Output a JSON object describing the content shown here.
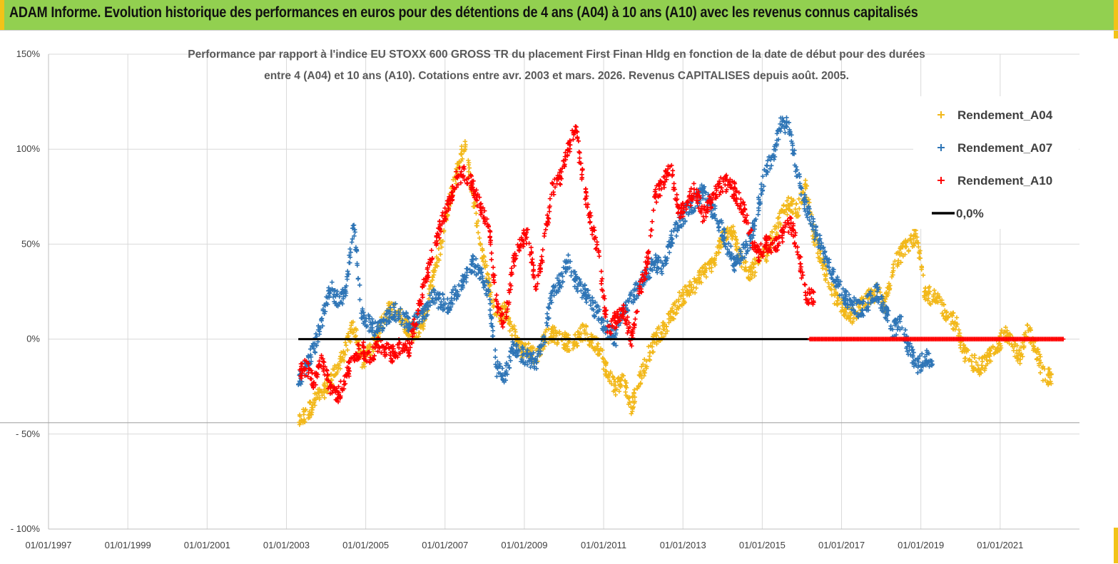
{
  "header": {
    "title": "ADAM Informe. Evolution historique des performances en euros pour des détentions de 4 ans (A04) à 10 ans (A10) avec les revenus connus capitalisés",
    "background": "#92d050"
  },
  "chart_data": {
    "type": "scatter",
    "title_line1": "Performance par rapport à l'indice EU STOXX 600 GROSS TR  du placement First Finan Hldg  en fonction de la date de début pour des durées",
    "title_line2": "entre 4 (A04) et 10 ans (A10). Cotations entre avr. 2003 et mars. 2026. Revenus CAPITALISES depuis août. 2005.",
    "xlabel": "",
    "ylabel": "",
    "y_range": [
      -100,
      150
    ],
    "y_ticks": [
      -100,
      -50,
      0,
      50,
      100,
      150
    ],
    "y_tick_labels": [
      "- 100%",
      "- 50%",
      "0%",
      "50%",
      "100%",
      "150%"
    ],
    "x_range": [
      1997.0,
      2023.0
    ],
    "x_ticks": [
      1997,
      1999,
      2001,
      2003,
      2005,
      2007,
      2009,
      2011,
      2013,
      2015,
      2017,
      2019,
      2021
    ],
    "x_tick_labels": [
      "01/01/1997",
      "01/01/1999",
      "01/01/2001",
      "01/01/2003",
      "01/01/2005",
      "01/01/2007",
      "01/01/2009",
      "01/01/2011",
      "01/01/2013",
      "01/01/2015",
      "01/01/2017",
      "01/01/2019",
      "01/01/2021"
    ],
    "grid": true,
    "legend_position": "top-right",
    "series": [
      {
        "name": "Rendement_A04",
        "color": "#f2b81a",
        "marker": "+",
        "x": [
          2003.3,
          2003.5,
          2003.7,
          2003.9,
          2004.1,
          2004.3,
          2004.5,
          2004.7,
          2004.9,
          2005.1,
          2005.3,
          2005.5,
          2005.7,
          2005.9,
          2006.1,
          2006.3,
          2006.5,
          2006.7,
          2006.9,
          2007.1,
          2007.3,
          2007.5,
          2007.7,
          2007.9,
          2008.1,
          2008.3,
          2008.5,
          2008.7,
          2008.9,
          2009.1,
          2009.3,
          2009.5,
          2009.7,
          2009.9,
          2010.1,
          2010.3,
          2010.5,
          2010.7,
          2010.9,
          2011.1,
          2011.3,
          2011.5,
          2011.7,
          2011.9,
          2012.1,
          2012.3,
          2012.5,
          2012.7,
          2012.9,
          2013.1,
          2013.3,
          2013.5,
          2013.7,
          2013.9,
          2014.1,
          2014.3,
          2014.5,
          2014.7,
          2014.9,
          2015.1,
          2015.3,
          2015.5,
          2015.7,
          2015.9,
          2016.1,
          2016.3,
          2016.5,
          2016.7,
          2016.9,
          2017.1,
          2017.3,
          2017.5,
          2017.7,
          2017.9,
          2018.1,
          2018.3,
          2018.5,
          2018.7,
          2018.9,
          2019.1,
          2019.3,
          2019.5,
          2019.7,
          2019.9,
          2020.1,
          2020.3,
          2020.5,
          2020.7,
          2020.9,
          2021.1,
          2021.3,
          2021.5,
          2021.7,
          2021.9,
          2022.1
        ],
        "y": [
          -44,
          -40,
          -33,
          -28,
          -23,
          -15,
          -5,
          8,
          -12,
          -6,
          2,
          14,
          16,
          11,
          5,
          3,
          12,
          32,
          50,
          72,
          88,
          104,
          76,
          50,
          30,
          10,
          15,
          5,
          -5,
          -6,
          -10,
          0,
          3,
          1,
          -2,
          0,
          4,
          -1,
          -5,
          -18,
          -25,
          -22,
          -35,
          -22,
          -10,
          0,
          5,
          12,
          20,
          25,
          28,
          35,
          38,
          48,
          56,
          55,
          40,
          35,
          40,
          45,
          55,
          65,
          72,
          68,
          80,
          55,
          40,
          28,
          20,
          15,
          12,
          18,
          22,
          25,
          18,
          38,
          45,
          50,
          55,
          25,
          22,
          18,
          12,
          8,
          -8,
          -12,
          -15,
          -10,
          -5,
          3,
          -2,
          -10,
          5,
          -5,
          -20
        ]
      },
      {
        "name": "Rendement_A07",
        "color": "#2e75b6",
        "marker": "+",
        "x": [
          2003.3,
          2003.5,
          2003.7,
          2003.9,
          2004.1,
          2004.3,
          2004.5,
          2004.7,
          2004.9,
          2005.1,
          2005.3,
          2005.5,
          2005.7,
          2005.9,
          2006.1,
          2006.3,
          2006.5,
          2006.7,
          2006.9,
          2007.1,
          2007.3,
          2007.5,
          2007.7,
          2007.9,
          2008.1,
          2008.3,
          2008.5,
          2008.7,
          2008.9,
          2009.1,
          2009.3,
          2009.5,
          2009.7,
          2009.9,
          2010.1,
          2010.3,
          2010.5,
          2010.7,
          2010.9,
          2011.1,
          2011.3,
          2011.5,
          2011.7,
          2011.9,
          2012.1,
          2012.3,
          2012.5,
          2012.7,
          2012.9,
          2013.1,
          2013.3,
          2013.5,
          2013.7,
          2013.9,
          2014.1,
          2014.3,
          2014.5,
          2014.7,
          2014.9,
          2015.1,
          2015.3,
          2015.5,
          2015.7,
          2015.9,
          2016.1,
          2016.3,
          2016.5,
          2016.7,
          2016.9,
          2017.1,
          2017.3,
          2017.5,
          2017.7,
          2017.9,
          2018.1,
          2018.3,
          2018.5,
          2018.7,
          2018.9,
          2019.1
        ],
        "y": [
          -22,
          -15,
          -5,
          10,
          28,
          20,
          25,
          60,
          12,
          8,
          5,
          10,
          15,
          12,
          8,
          10,
          15,
          22,
          20,
          18,
          25,
          32,
          40,
          35,
          25,
          -15,
          -20,
          -5,
          -8,
          -10,
          -12,
          0,
          25,
          30,
          42,
          30,
          25,
          18,
          12,
          5,
          0,
          15,
          22,
          28,
          35,
          40,
          38,
          52,
          60,
          68,
          72,
          78,
          70,
          62,
          50,
          40,
          45,
          52,
          70,
          90,
          98,
          115,
          110,
          85,
          70,
          58,
          48,
          38,
          28,
          22,
          18,
          15,
          20,
          25,
          15,
          5,
          8,
          -5,
          -15,
          -10
        ]
      },
      {
        "name": "Rendement_A10",
        "color": "#ff0000",
        "marker": "+",
        "x": [
          2003.3,
          2003.5,
          2003.7,
          2003.9,
          2004.1,
          2004.3,
          2004.5,
          2004.7,
          2004.9,
          2005.1,
          2005.3,
          2005.5,
          2005.7,
          2005.9,
          2006.1,
          2006.3,
          2006.5,
          2006.7,
          2006.9,
          2007.1,
          2007.3,
          2007.5,
          2007.7,
          2007.9,
          2008.1,
          2008.3,
          2008.5,
          2008.7,
          2008.9,
          2009.1,
          2009.3,
          2009.5,
          2009.7,
          2009.9,
          2010.1,
          2010.3,
          2010.5,
          2010.7,
          2010.9,
          2011.1,
          2011.3,
          2011.5,
          2011.7,
          2011.9,
          2012.1,
          2012.3,
          2012.5,
          2012.7,
          2012.9,
          2013.1,
          2013.3,
          2013.5,
          2013.7,
          2013.9,
          2014.1,
          2014.3,
          2014.5,
          2014.7,
          2014.9,
          2015.1,
          2015.3,
          2015.5,
          2015.7,
          2015.9,
          2016.1
        ],
        "y": [
          -18,
          -15,
          -22,
          -12,
          -25,
          -30,
          -20,
          -8,
          -5,
          -10,
          -3,
          -6,
          -8,
          -3,
          -5,
          15,
          30,
          48,
          60,
          72,
          85,
          88,
          80,
          70,
          60,
          20,
          5,
          38,
          52,
          55,
          25,
          50,
          78,
          85,
          100,
          110,
          80,
          60,
          40,
          5,
          10,
          15,
          0,
          25,
          40,
          75,
          82,
          90,
          65,
          70,
          80,
          65,
          72,
          80,
          82,
          78,
          70,
          55,
          45,
          50,
          48,
          55,
          62,
          48,
          22
        ]
      },
      {
        "name": "0,0%",
        "color": "#000000",
        "marker": "line",
        "x": [
          2003.3,
          2016.2
        ],
        "y": [
          0,
          0
        ]
      }
    ],
    "red_zero_band": {
      "x": [
        2016.2,
        2022.6
      ],
      "y": 0
    }
  }
}
